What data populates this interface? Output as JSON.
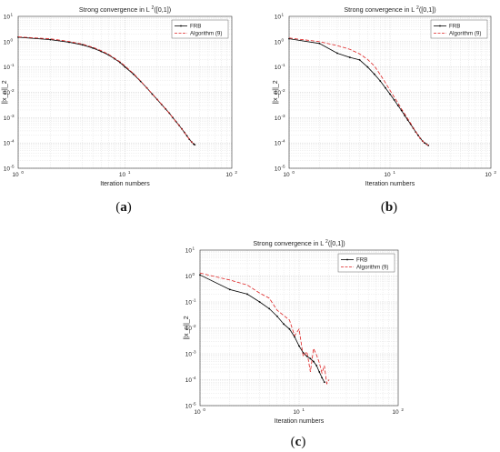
{
  "chart_data": [
    {
      "type": "line",
      "title_prefix": "Strong convergence in L",
      "title_sup": "2",
      "title_suffix": "([0,1])",
      "xlabel": "Iteration numbers",
      "ylabel": "||x_n||_2",
      "xscale": "log",
      "yscale": "log",
      "xlim": [
        1,
        100
      ],
      "ylim": [
        1e-05,
        10
      ],
      "grid": true,
      "legend_position": "top-right",
      "caption_open": "(",
      "caption_letter": "a",
      "caption_close": ")",
      "series": [
        {
          "name": "FRB",
          "color": "#000000",
          "style": "solid",
          "marker": "dot",
          "x": [
            1,
            2,
            3,
            4,
            5,
            6,
            7,
            8,
            9,
            10,
            12,
            14,
            16,
            18,
            20,
            22,
            24,
            26,
            28,
            30,
            32,
            34,
            36,
            38,
            40,
            42,
            44,
            45
          ],
          "y": [
            1.5,
            1.2,
            0.95,
            0.75,
            0.56,
            0.41,
            0.3,
            0.21,
            0.15,
            0.1,
            0.052,
            0.027,
            0.015,
            0.0085,
            0.0052,
            0.0033,
            0.0022,
            0.0015,
            0.001,
            0.0007,
            0.0005,
            0.00036,
            0.00026,
            0.00019,
            0.00014,
            0.00011,
            9e-05,
            8.5e-05
          ]
        },
        {
          "name": "Algorithm (9)",
          "color": "#dd2222",
          "style": "dashed",
          "marker": "none",
          "x": [
            1,
            2,
            3,
            4,
            5,
            6,
            7,
            8,
            9,
            10,
            12,
            14,
            16,
            18,
            20,
            22,
            24,
            26,
            28,
            30,
            32,
            34,
            36,
            38,
            40,
            42,
            44,
            45
          ],
          "y": [
            1.55,
            1.3,
            1.02,
            0.8,
            0.6,
            0.44,
            0.32,
            0.22,
            0.16,
            0.11,
            0.055,
            0.028,
            0.015,
            0.0087,
            0.0053,
            0.0034,
            0.0022,
            0.0015,
            0.001,
            0.0007,
            0.0005,
            0.00036,
            0.00026,
            0.00019,
            0.00014,
            0.00011,
            9e-05,
            8.5e-05
          ]
        }
      ]
    },
    {
      "type": "line",
      "title_prefix": "Strong convergence in L",
      "title_sup": "2",
      "title_suffix": "([0,1])",
      "xlabel": "Iteration numbers",
      "ylabel": "||x_n||_2",
      "xscale": "log",
      "yscale": "log",
      "xlim": [
        1,
        100
      ],
      "ylim": [
        1e-05,
        10
      ],
      "grid": true,
      "legend_position": "top-right",
      "caption_open": "(",
      "caption_letter": "b",
      "caption_close": ")",
      "series": [
        {
          "name": "FRB",
          "color": "#000000",
          "style": "solid",
          "marker": "dot",
          "x": [
            1,
            2,
            3,
            4,
            5,
            6,
            7,
            8,
            9,
            10,
            11,
            12,
            13,
            14,
            15,
            16,
            17,
            18,
            19,
            20,
            21,
            22,
            23,
            24
          ],
          "y": [
            1.3,
            0.85,
            0.35,
            0.24,
            0.19,
            0.1,
            0.052,
            0.028,
            0.015,
            0.0085,
            0.005,
            0.003,
            0.0019,
            0.0012,
            0.0008,
            0.00055,
            0.00038,
            0.00027,
            0.0002,
            0.00015,
            0.00012,
            0.0001,
            9e-05,
            8e-05
          ]
        },
        {
          "name": "Algorithm (9)",
          "color": "#dd2222",
          "style": "dashed",
          "marker": "none",
          "x": [
            1,
            2,
            3,
            4,
            5,
            6,
            7,
            8,
            9,
            10,
            11,
            12,
            13,
            14,
            15,
            16,
            17,
            18,
            19,
            20,
            21,
            22,
            23,
            24
          ],
          "y": [
            1.4,
            1.0,
            0.7,
            0.5,
            0.33,
            0.2,
            0.11,
            0.05,
            0.024,
            0.012,
            0.0065,
            0.0038,
            0.0022,
            0.0014,
            0.0009,
            0.0006,
            0.0004,
            0.00028,
            0.0002,
            0.00015,
            0.00012,
            0.0001,
            9e-05,
            8e-05
          ]
        }
      ]
    },
    {
      "type": "line",
      "title_prefix": "Strong convergence in L",
      "title_sup": "2",
      "title_suffix": "([0,1])",
      "xlabel": "Iteration numbers",
      "ylabel": "||x_n||_2",
      "xscale": "log",
      "yscale": "log",
      "xlim": [
        1,
        100
      ],
      "ylim": [
        1e-05,
        10
      ],
      "grid": true,
      "legend_position": "top-right",
      "caption_open": "(",
      "caption_letter": "c",
      "caption_close": ")",
      "series": [
        {
          "name": "FRB",
          "color": "#000000",
          "style": "solid",
          "marker": "dot",
          "x": [
            1,
            2,
            3,
            4,
            5,
            6,
            7,
            8,
            9,
            10,
            11,
            12,
            13,
            14,
            15,
            16,
            17,
            18
          ],
          "y": [
            1.1,
            0.3,
            0.2,
            0.1,
            0.055,
            0.028,
            0.014,
            0.009,
            0.0045,
            0.002,
            0.0011,
            0.0008,
            0.00065,
            0.0005,
            0.00035,
            0.0002,
            0.00012,
            8e-05
          ]
        },
        {
          "name": "Algorithm (9)",
          "color": "#dd2222",
          "style": "dashed",
          "marker": "none",
          "x": [
            1,
            2,
            3,
            4,
            5,
            6,
            7,
            8,
            9,
            10,
            11,
            12,
            13,
            14,
            15,
            16,
            17,
            18,
            19,
            20
          ],
          "y": [
            1.3,
            0.7,
            0.45,
            0.22,
            0.14,
            0.048,
            0.03,
            0.02,
            0.005,
            0.009,
            0.0008,
            0.0012,
            0.0002,
            0.0016,
            0.0009,
            0.00045,
            0.00018,
            0.00035,
            7e-05,
            0.0001
          ]
        }
      ]
    }
  ]
}
